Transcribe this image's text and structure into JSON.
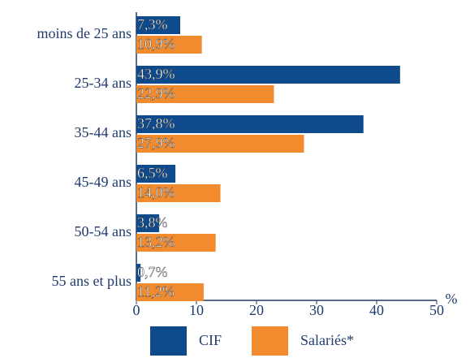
{
  "chart_data": {
    "type": "hbar",
    "categories": [
      "moins de 25 ans",
      "25-34 ans",
      "35-44 ans",
      "45-49 ans",
      "50-54 ans",
      "55 ans et plus"
    ],
    "series": [
      {
        "name": "CIF",
        "color": "#0e4a8c",
        "values": [
          7.3,
          43.9,
          37.8,
          6.5,
          3.8,
          0.7
        ],
        "value_labels": [
          "7,3%",
          "43,9%",
          "37,8%",
          "6,5%",
          "3,8%",
          "0,7%"
        ]
      },
      {
        "name": "Salariés*",
        "color": "#f28a2e",
        "values": [
          10.9,
          22.9,
          27.9,
          14.0,
          13.2,
          11.2
        ],
        "value_labels": [
          "10,9%",
          "22,9%",
          "27,9%",
          "14,0%",
          "13,2%",
          "11,2%"
        ]
      }
    ],
    "x_label": "%",
    "xlim": [
      0,
      50
    ],
    "xticks": [
      0,
      10,
      20,
      30,
      40,
      50
    ]
  }
}
